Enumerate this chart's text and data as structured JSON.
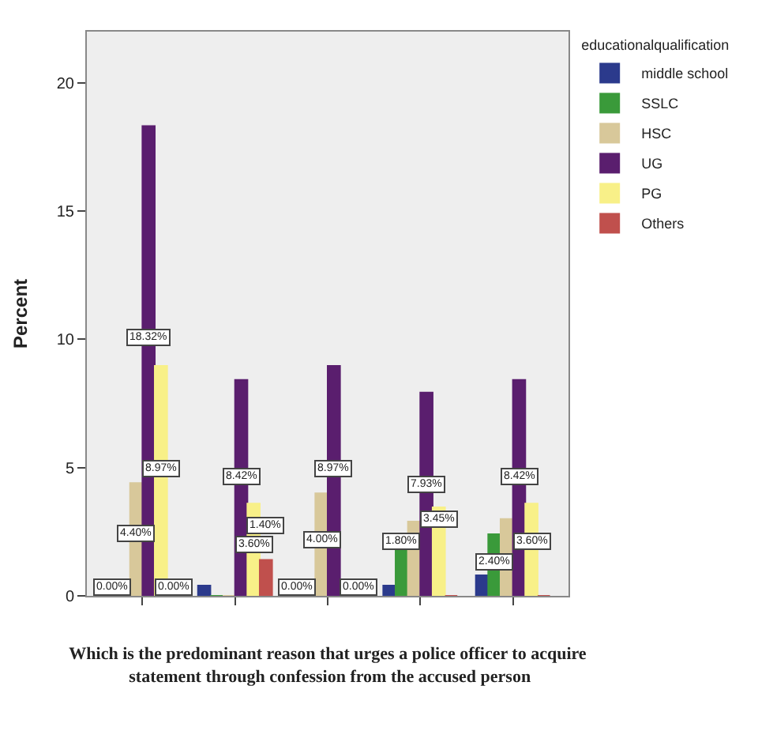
{
  "chart_data": {
    "type": "bar",
    "xlabel": "Which is the predominant reason that urges a police officer to acquire statement through confession from the accused person",
    "ylabel": "Percent",
    "legend_title": "educationalqualification",
    "legend": "top right",
    "grid": false,
    "categories": [
      null,
      null,
      null,
      null,
      null
    ],
    "ylim": [
      0,
      22
    ],
    "yticks": [
      0,
      5,
      10,
      15,
      20
    ],
    "series": [
      {
        "name": "middle school",
        "color": "#2b3a8c",
        "values": [
          0,
          0.4,
          0,
          0.4,
          0.8
        ],
        "value_labels": [
          "0.00%",
          null,
          "0.00%",
          null,
          null
        ]
      },
      {
        "name": "SSLC",
        "color": "#3a9a3a",
        "values": [
          0,
          0,
          0,
          1.8,
          2.4
        ],
        "value_labels": [
          null,
          null,
          null,
          "1.80%",
          "2.40%"
        ]
      },
      {
        "name": "HSC",
        "color": "#d8c89a",
        "values": [
          4.4,
          0,
          4.0,
          2.9,
          3.0
        ],
        "value_labels": [
          "4.40%",
          null,
          "4.00%",
          null,
          null
        ]
      },
      {
        "name": "UG",
        "color": "#5a1e6e",
        "values": [
          18.32,
          8.42,
          8.97,
          7.93,
          8.42
        ],
        "value_labels": [
          "18.32%",
          "8.42%",
          "8.97%",
          "7.93%",
          "8.42%"
        ]
      },
      {
        "name": "PG",
        "color": "#f8f088",
        "values": [
          8.97,
          3.6,
          0,
          3.45,
          3.6
        ],
        "value_labels": [
          "8.97%",
          "3.60%",
          null,
          "3.45%",
          "3.60%"
        ]
      },
      {
        "name": "Others",
        "color": "#c0504d",
        "values": [
          0,
          1.4,
          0,
          0,
          0
        ],
        "value_labels": [
          "0.00%",
          "1.40%",
          "0.00%",
          null,
          null
        ]
      }
    ]
  }
}
